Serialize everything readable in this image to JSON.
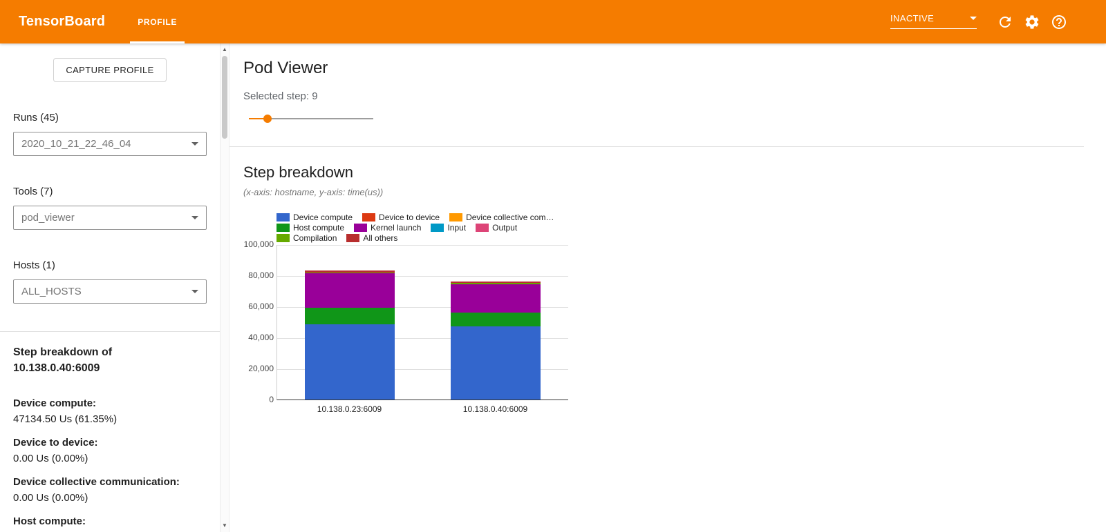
{
  "header": {
    "brand": "TensorBoard",
    "tab": "PROFILE",
    "status_select": "INACTIVE"
  },
  "sidebar": {
    "capture_button": "CAPTURE PROFILE",
    "runs_label": "Runs (45)",
    "runs_value": "2020_10_21_22_46_04",
    "tools_label": "Tools (7)",
    "tools_value": "pod_viewer",
    "hosts_label": "Hosts (1)",
    "hosts_value": "ALL_HOSTS",
    "breakdown_title_line1": "Step breakdown of",
    "breakdown_title_line2": "10.138.0.40:6009",
    "stats": [
      {
        "label": "Device compute:",
        "value": "47134.50 Us (61.35%)"
      },
      {
        "label": "Device to device:",
        "value": "0.00 Us (0.00%)"
      },
      {
        "label": "Device collective communication:",
        "value": "0.00 Us (0.00%)"
      },
      {
        "label": "Host compute:",
        "value": ""
      }
    ]
  },
  "main": {
    "title": "Pod Viewer",
    "selected_step_label": "Selected step: 9",
    "slider_percent": 15,
    "section_title": "Step breakdown",
    "section_subtitle": "(x-axis: hostname, y-axis: time(us))"
  },
  "chart_data": {
    "type": "bar",
    "stacked": true,
    "title": "Step breakdown",
    "xlabel": "hostname",
    "ylabel": "time(us)",
    "ylim": [
      0,
      100000
    ],
    "grid": true,
    "legend_position": "top",
    "y_ticks": [
      "100,000",
      "80,000",
      "60,000",
      "40,000",
      "20,000",
      "0"
    ],
    "categories": [
      "10.138.0.23:6009",
      "10.138.0.40:6009"
    ],
    "series": [
      {
        "name": "Device compute",
        "color": "#3366cc",
        "values": [
          48500,
          47134.5
        ]
      },
      {
        "name": "Device to device",
        "color": "#dc3912",
        "values": [
          0,
          0
        ]
      },
      {
        "name": "Device collective communication",
        "color": "#ff9900",
        "values": [
          0,
          0
        ]
      },
      {
        "name": "Host compute",
        "color": "#109618",
        "values": [
          10400,
          9000
        ]
      },
      {
        "name": "Kernel launch",
        "color": "#990099",
        "values": [
          22600,
          18200
        ]
      },
      {
        "name": "Input",
        "color": "#0099c6",
        "values": [
          0,
          0
        ]
      },
      {
        "name": "Output",
        "color": "#dd4477",
        "values": [
          0,
          0
        ]
      },
      {
        "name": "Compilation",
        "color": "#66aa00",
        "values": [
          450,
          700
        ]
      },
      {
        "name": "All others",
        "color": "#b82e2e",
        "values": [
          1100,
          900
        ]
      }
    ],
    "legend_rows": [
      [
        "Device compute",
        "Device to device",
        "Device collective com…"
      ],
      [
        "Host compute",
        "Kernel launch",
        "Input",
        "Output"
      ],
      [
        "Compilation",
        "All others"
      ]
    ]
  }
}
